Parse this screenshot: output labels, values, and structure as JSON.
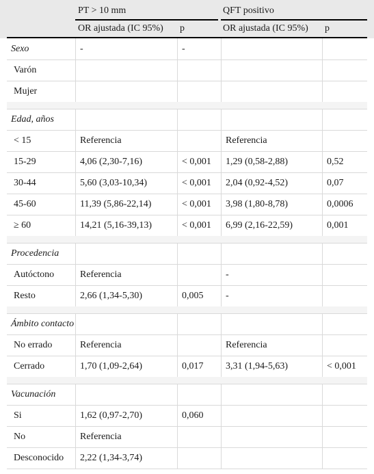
{
  "header": {
    "group1": "PT > 10 mm",
    "group2": "QFT positivo",
    "or_label_1": "OR ajustada (IC 95%)",
    "p_label_1": "p",
    "or_label_2": "OR ajustada (IC 95%)",
    "p_label_2": "p"
  },
  "sections": [
    {
      "title": "Sexo",
      "title_values": [
        "-",
        "-",
        "",
        ""
      ],
      "rows": [
        {
          "label": "Varón",
          "values": [
            "",
            "",
            "",
            ""
          ]
        },
        {
          "label": "Mujer",
          "values": [
            "",
            "",
            "",
            ""
          ]
        }
      ]
    },
    {
      "title": "Edad, años",
      "title_values": [
        "",
        "",
        "",
        ""
      ],
      "rows": [
        {
          "label": "< 15",
          "values": [
            "Referencia",
            "",
            "Referencia",
            ""
          ]
        },
        {
          "label": "15-29",
          "values": [
            "4,06 (2,30-7,16)",
            "< 0,001",
            "1,29 (0,58-2,88)",
            "0,52"
          ]
        },
        {
          "label": "30-44",
          "values": [
            "5,60 (3,03-10,34)",
            "< 0,001",
            "2,04 (0,92-4,52)",
            "0,07"
          ]
        },
        {
          "label": "45-60",
          "values": [
            "11,39 (5,86-22,14)",
            "< 0,001",
            "3,98 (1,80-8,78)",
            "0,0006"
          ]
        },
        {
          "label": "≥ 60",
          "values": [
            "14,21 (5,16-39,13)",
            "< 0,001",
            "6,99 (2,16-22,59)",
            "0,001"
          ]
        }
      ]
    },
    {
      "title": "Procedencia",
      "title_values": [
        "",
        "",
        "",
        ""
      ],
      "rows": [
        {
          "label": "Autóctono",
          "values": [
            "Referencia",
            "",
            "-",
            ""
          ]
        },
        {
          "label": "Resto",
          "values": [
            "2,66 (1,34-5,30)",
            "0,005",
            "-",
            ""
          ]
        }
      ]
    },
    {
      "title": "Ámbito contacto",
      "title_values": [
        "",
        "",
        "",
        ""
      ],
      "rows": [
        {
          "label": "No errado",
          "values": [
            "Referencia",
            "",
            "Referencia",
            ""
          ]
        },
        {
          "label": "Cerrado",
          "values": [
            "1,70 (1,09-2,64)",
            "0,017",
            "3,31 (1,94-5,63)",
            "< 0,001"
          ]
        }
      ]
    },
    {
      "title": "Vacunación",
      "title_values": [
        "",
        "",
        "",
        ""
      ],
      "rows": [
        {
          "label": "Si",
          "values": [
            "1,62 (0,97-2,70)",
            "0,060",
            "",
            ""
          ]
        },
        {
          "label": "No",
          "values": [
            "Referencia",
            "",
            "",
            ""
          ]
        },
        {
          "label": "Desconocido",
          "values": [
            "2,22 (1,34-3,74)",
            "",
            "",
            ""
          ]
        }
      ]
    }
  ]
}
